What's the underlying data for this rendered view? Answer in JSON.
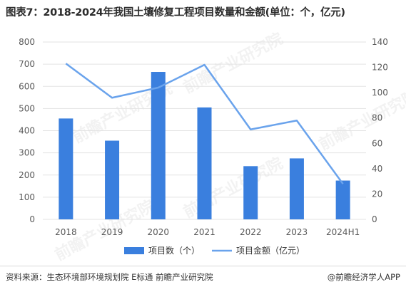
{
  "title": "图表7：2018-2024年我国土壤修复工程项目数量和金额(单位：个，亿元)",
  "source": "资料来源：生态环境部环境规划院 E标通 前瞻产业研究院",
  "brand": "@前瞻经济学人APP",
  "watermark": "前瞻产业研究院",
  "colors": {
    "bar": "#3a7fde",
    "line": "#6aa3ec",
    "grid": "#e3e3e3",
    "axis_text": "#595959"
  },
  "chart_data": {
    "type": "bar",
    "categories": [
      "2018",
      "2019",
      "2020",
      "2021",
      "2022",
      "2023",
      "2024H1"
    ],
    "series": [
      {
        "name": "项目数（个）",
        "type": "bar",
        "axis": "left",
        "values": [
          455,
          355,
          665,
          505,
          240,
          275,
          175
        ]
      },
      {
        "name": "项目金额（亿元）",
        "type": "line",
        "axis": "right",
        "values": [
          123,
          96,
          104,
          122,
          71,
          78,
          28
        ]
      }
    ],
    "y_left": {
      "min": 0,
      "max": 800,
      "ticks": [
        0,
        100,
        200,
        300,
        400,
        500,
        600,
        700,
        800
      ]
    },
    "y_right": {
      "min": 0,
      "max": 140,
      "ticks": [
        0,
        20,
        40,
        60,
        80,
        100,
        120,
        140
      ]
    },
    "grid": true,
    "legend_position": "bottom-center"
  }
}
